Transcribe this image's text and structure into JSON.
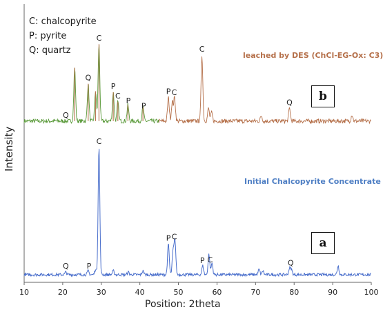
{
  "legend": {
    "line1": "C: chalcopyrite",
    "line2": "P: pyrite",
    "line3": "Q: quartz"
  },
  "panel_b": {
    "title": "leached by DES (ChCl-EG-Ox: C3)",
    "box_label": "b"
  },
  "panel_a": {
    "title": "Initial Chalcopyrite Concentrate",
    "box_label": "a"
  },
  "colors": {
    "series_b": "#b5704a",
    "series_b_low": "#5a9a3a",
    "series_a": "#4a6fcc",
    "axis": "#666666"
  },
  "chart_data": {
    "type": "line",
    "xlabel": "Position: 2theta",
    "ylabel": "Intensity",
    "xlim": [
      10,
      100
    ],
    "xticks": [
      10,
      20,
      30,
      40,
      50,
      60,
      70,
      80,
      90,
      100
    ],
    "series": [
      {
        "baseline": 0.13,
        "peaks": [
          {
            "x": 23.1,
            "h": 0.5
          },
          {
            "x": 26.6,
            "h": 0.35
          },
          {
            "x": 28.5,
            "h": 0.28
          },
          {
            "x": 29.4,
            "h": 0.72
          },
          {
            "x": 33.1,
            "h": 0.27
          },
          {
            "x": 34.3,
            "h": 0.18
          },
          {
            "x": 36.9,
            "h": 0.15
          },
          {
            "x": 40.8,
            "h": 0.13
          },
          {
            "x": 47.4,
            "h": 0.22
          },
          {
            "x": 48.4,
            "h": 0.18
          },
          {
            "x": 49.0,
            "h": 0.22
          },
          {
            "x": 56.1,
            "h": 0.62
          },
          {
            "x": 57.8,
            "h": 0.12
          },
          {
            "x": 58.6,
            "h": 0.08
          },
          {
            "x": 71.5,
            "h": 0.05
          },
          {
            "x": 78.8,
            "h": 0.12
          },
          {
            "x": 95.0,
            "h": 0.06
          }
        ]
      },
      {
        "baseline": 0.06,
        "peaks": [
          {
            "x": 20.8,
            "h": 0.02
          },
          {
            "x": 26.6,
            "h": 0.03
          },
          {
            "x": 28.5,
            "h": 0.04
          },
          {
            "x": 29.4,
            "h": 1.0
          },
          {
            "x": 33.1,
            "h": 0.03
          },
          {
            "x": 37.0,
            "h": 0.02
          },
          {
            "x": 40.8,
            "h": 0.03
          },
          {
            "x": 47.4,
            "h": 0.24
          },
          {
            "x": 48.6,
            "h": 0.18
          },
          {
            "x": 49.1,
            "h": 0.27
          },
          {
            "x": 56.3,
            "h": 0.07
          },
          {
            "x": 57.9,
            "h": 0.16
          },
          {
            "x": 58.7,
            "h": 0.09
          },
          {
            "x": 70.9,
            "h": 0.04
          },
          {
            "x": 71.9,
            "h": 0.03
          },
          {
            "x": 78.8,
            "h": 0.05
          },
          {
            "x": 79.3,
            "h": 0.04
          },
          {
            "x": 91.4,
            "h": 0.07
          }
        ]
      }
    ],
    "annotations_b": [
      {
        "text": "C",
        "x": 29.4
      },
      {
        "text": "Q",
        "x": 26.6
      },
      {
        "text": "P",
        "x": 33.1
      },
      {
        "text": "C",
        "x": 34.3
      },
      {
        "text": "P",
        "x": 37.0
      },
      {
        "text": "P",
        "x": 41.0
      },
      {
        "text": "P",
        "x": 47.4
      },
      {
        "text": "C",
        "x": 48.9
      },
      {
        "text": "C",
        "x": 56.1
      },
      {
        "text": "Q",
        "x": 20.8
      },
      {
        "text": "Q",
        "x": 78.8
      }
    ],
    "annotations_a": [
      {
        "text": "C",
        "x": 29.4
      },
      {
        "text": "P",
        "x": 47.4
      },
      {
        "text": "C",
        "x": 48.9
      },
      {
        "text": "C",
        "x": 58.2
      },
      {
        "text": "P",
        "x": 56.2
      },
      {
        "text": "Q",
        "x": 79.1
      },
      {
        "text": "Q",
        "x": 20.8
      },
      {
        "text": "P",
        "x": 26.8
      }
    ]
  }
}
